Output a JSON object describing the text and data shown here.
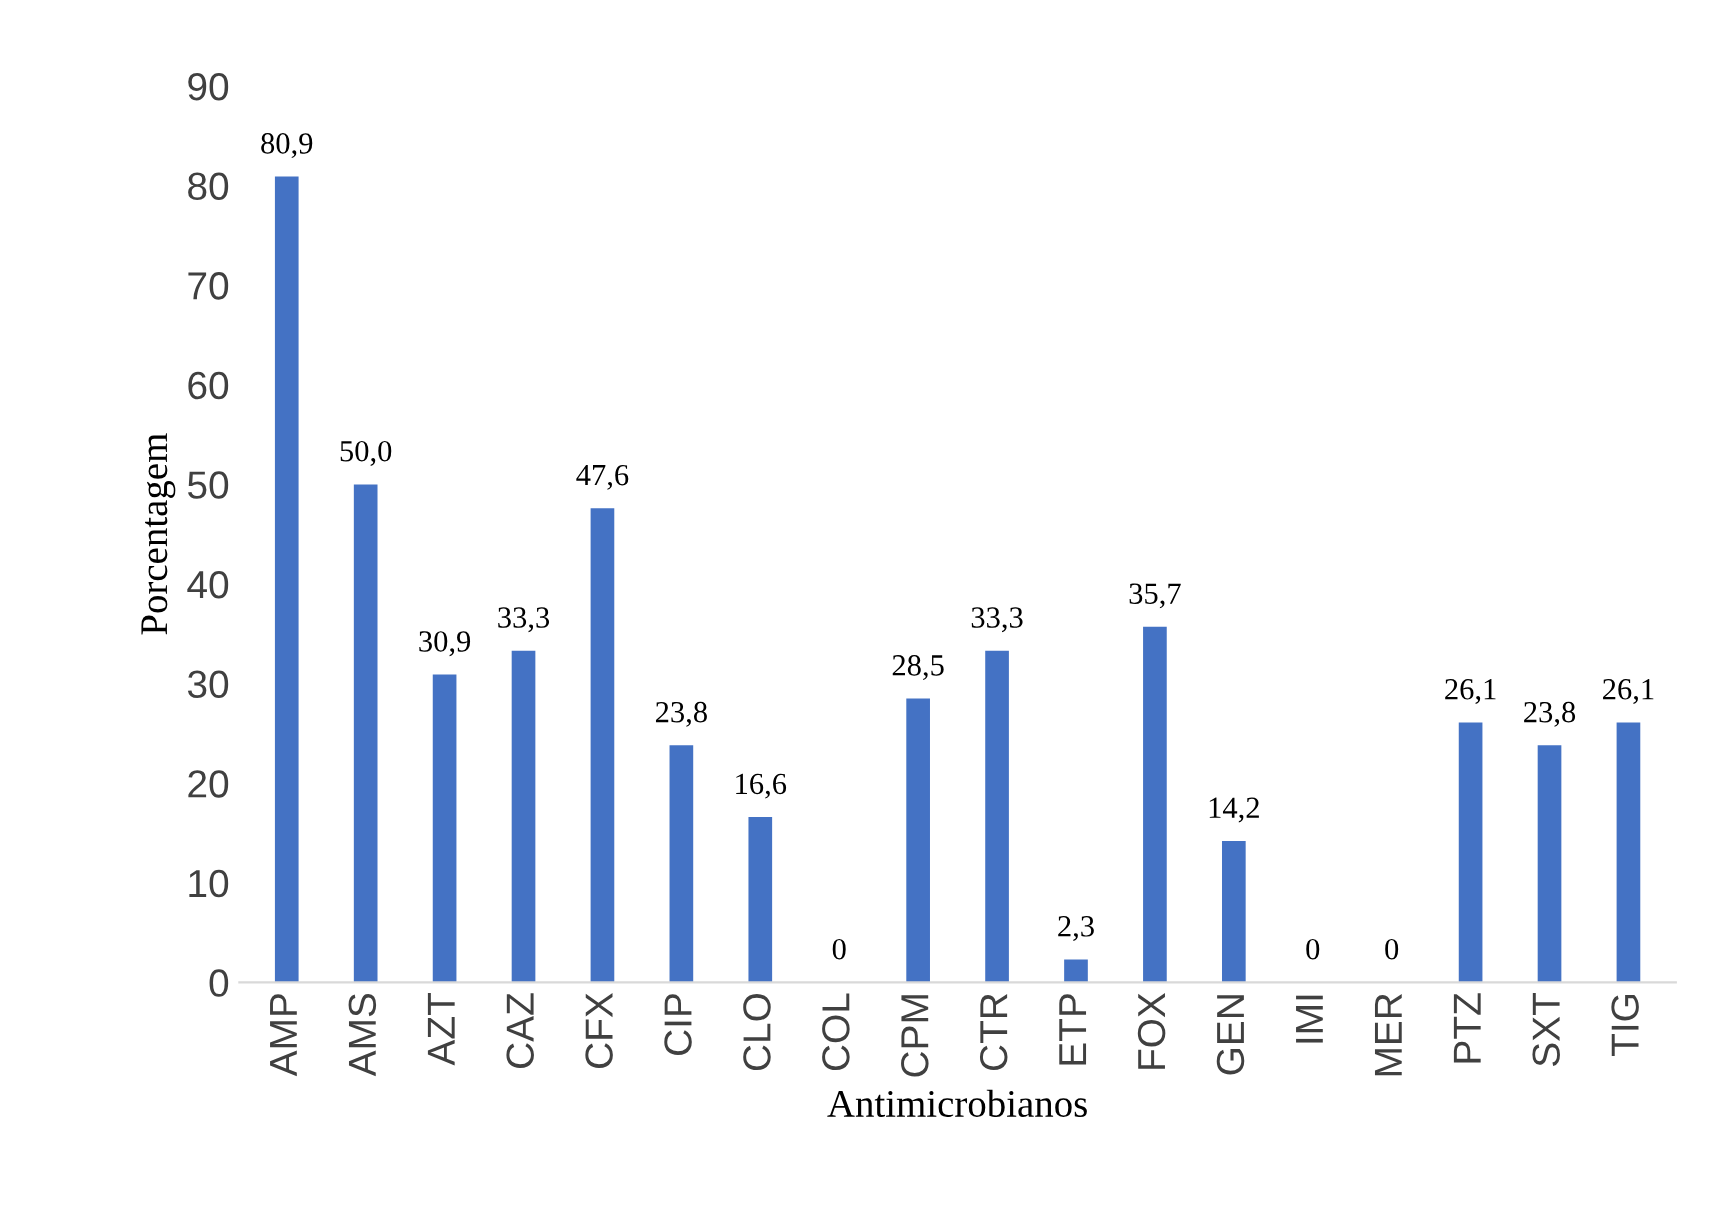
{
  "chart_data": {
    "type": "bar",
    "xlabel": "Antimicrobianos",
    "ylabel": "Porcentagem",
    "categories": [
      "AMP",
      "AMS",
      "AZT",
      "CAZ",
      "CFX",
      "CIP",
      "CLO",
      "COL",
      "CPM",
      "CTR",
      "ETP",
      "FOX",
      "GEN",
      "IMI",
      "MER",
      "PTZ",
      "SXT",
      "TIG"
    ],
    "values": [
      80.9,
      50.0,
      30.9,
      33.3,
      47.6,
      23.8,
      16.6,
      0,
      28.5,
      33.3,
      2.3,
      35.7,
      14.2,
      0,
      0,
      26.1,
      23.8,
      26.1
    ],
    "value_labels": [
      "80,9",
      "50,0",
      "30,9",
      "33,3",
      "47,6",
      "23,8",
      "16,6",
      "0",
      "28,5",
      "33,3",
      "2,3",
      "35,7",
      "14,2",
      "0",
      "0",
      "26,1",
      "23,8",
      "26,1"
    ],
    "color": "#4472c4",
    "ylim": [
      0,
      90
    ],
    "yticks": [
      0,
      10,
      20,
      30,
      40,
      50,
      60,
      70,
      80,
      90
    ],
    "grid": false,
    "legend": false
  }
}
